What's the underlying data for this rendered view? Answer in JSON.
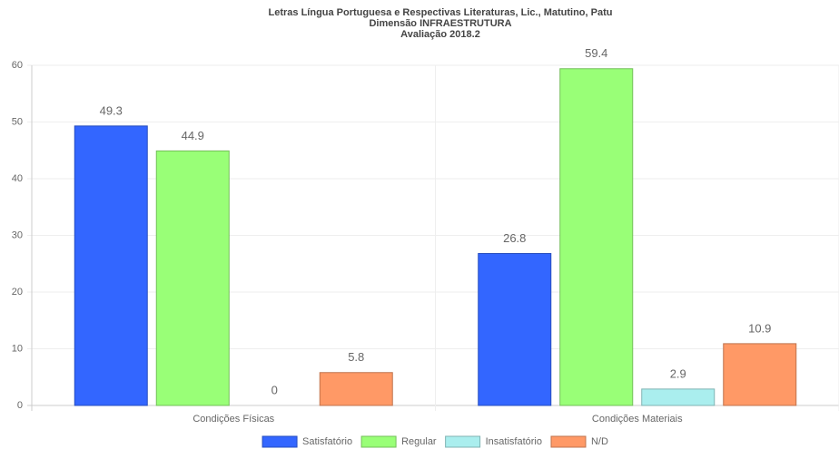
{
  "chart_data": {
    "type": "bar",
    "title": [
      "Letras Língua Portuguesa e Respectivas Literaturas, Lic., Matutino, Patu",
      "Dimensão INFRAESTRUTURA",
      "Avaliação 2018.2"
    ],
    "categories": [
      "Condições Físicas",
      "Condições Materiais"
    ],
    "series": [
      {
        "name": "Satisfatório",
        "color": "#3366ff",
        "values": [
          49.3,
          26.8
        ]
      },
      {
        "name": "Regular",
        "color": "#99ff77",
        "values": [
          44.9,
          59.4
        ]
      },
      {
        "name": "Insatisfatório",
        "color": "#aaeeee",
        "values": [
          0,
          2.9
        ]
      },
      {
        "name": "N/D",
        "color": "#ff9966",
        "values": [
          5.8,
          10.9
        ]
      }
    ],
    "ylim": [
      0,
      60
    ],
    "yticks": [
      0,
      10,
      20,
      30,
      40,
      50,
      60
    ],
    "grid": true,
    "legend": "bottom"
  }
}
